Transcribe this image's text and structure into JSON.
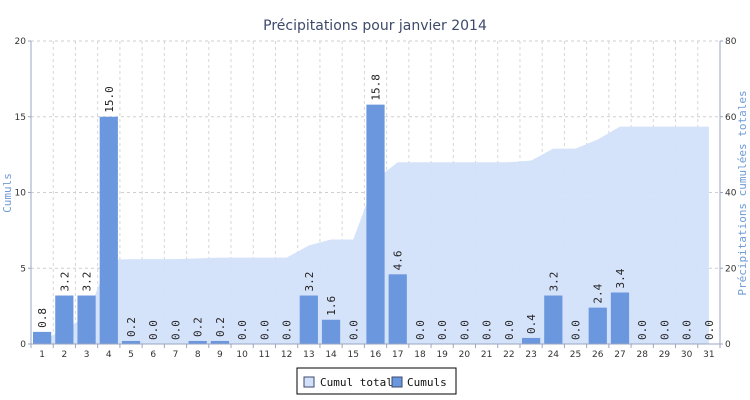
{
  "chart_data": {
    "type": "bar",
    "title": "Précipitations pour janvier 2014",
    "ylabel": "Cumuls",
    "y2label": "Précipitations cumulées totales",
    "categories": [
      "1",
      "2",
      "3",
      "4",
      "5",
      "6",
      "7",
      "8",
      "9",
      "10",
      "11",
      "12",
      "13",
      "14",
      "15",
      "16",
      "17",
      "18",
      "19",
      "20",
      "21",
      "22",
      "23",
      "24",
      "25",
      "26",
      "27",
      "28",
      "29",
      "30",
      "31"
    ],
    "ylim": [
      0,
      20
    ],
    "y2lim": [
      0,
      80
    ],
    "yticks": [
      0,
      5,
      10,
      15,
      20
    ],
    "y2ticks": [
      0,
      20,
      40,
      60,
      80
    ],
    "grid": true,
    "legend_position": "bottom-center",
    "series": [
      {
        "name": "Cumuls",
        "type": "bar",
        "axis": "left",
        "color": "#6b97df",
        "values": [
          0.8,
          3.2,
          3.2,
          15.0,
          0.2,
          0.0,
          0.0,
          0.2,
          0.2,
          0.0,
          0.0,
          0.0,
          3.2,
          1.6,
          0.0,
          15.8,
          4.6,
          0.0,
          0.0,
          0.0,
          0.0,
          0.0,
          0.4,
          3.2,
          0.0,
          2.4,
          3.4,
          0.0,
          0.0,
          0.0,
          0.0
        ],
        "labels": [
          "0.8",
          "3.2",
          "3.2",
          "15.0",
          "0.2",
          "0.0",
          "0.0",
          "0.2",
          "0.2",
          "0.0",
          "0.0",
          "0.0",
          "3.2",
          "1.6",
          "0.0",
          "15.8",
          "4.6",
          "0.0",
          "0.0",
          "0.0",
          "0.0",
          "0.0",
          "0.4",
          "3.2",
          "0.0",
          "2.4",
          "3.4",
          "0.0",
          "0.0",
          "0.0",
          "0.0"
        ]
      },
      {
        "name": "Cumul total",
        "type": "area",
        "axis": "right",
        "color": "#d2e0fa",
        "values": [
          0.8,
          4.0,
          7.2,
          22.2,
          22.4,
          22.4,
          22.4,
          22.6,
          22.8,
          22.8,
          22.8,
          22.8,
          26.0,
          27.6,
          27.6,
          43.4,
          48.0,
          48.0,
          48.0,
          48.0,
          48.0,
          48.0,
          48.4,
          51.6,
          51.6,
          54.0,
          57.4,
          57.4,
          57.4,
          57.4,
          57.4
        ]
      }
    ],
    "legend": [
      "Cumul total",
      "Cumuls"
    ]
  }
}
